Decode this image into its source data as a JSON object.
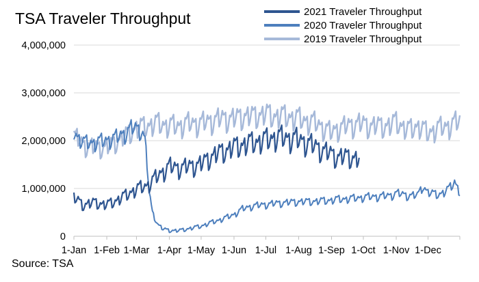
{
  "title": "TSA Traveler Throughput",
  "source": "Source: TSA",
  "chart_data": {
    "type": "line",
    "title": "TSA Traveler Throughput",
    "xlabel": "",
    "ylabel": "",
    "ylim": [
      0,
      4000000
    ],
    "yticks": [
      0,
      1000000,
      2000000,
      3000000,
      4000000
    ],
    "ytick_labels": [
      "0",
      "1,000,000",
      "2,000,000",
      "3,000,000",
      "4,000,000"
    ],
    "xlim": [
      1,
      365
    ],
    "xticks": [
      1,
      32,
      60,
      91,
      121,
      152,
      182,
      213,
      244,
      274,
      305,
      335
    ],
    "xtick_labels": [
      "1-Jan",
      "1-Feb",
      "1-Mar",
      "1-Apr",
      "1-May",
      "1-Jun",
      "1-Jul",
      "1-Aug",
      "1-Sep",
      "1-Oct",
      "1-Nov",
      "1-Dec"
    ],
    "grid": true,
    "legend_position": "top-right",
    "series": [
      {
        "name": "2021 Traveler Throughput",
        "color": "#2e5590",
        "x": [
          1,
          10,
          20,
          32,
          40,
          50,
          60,
          70,
          80,
          91,
          100,
          110,
          121,
          130,
          140,
          152,
          160,
          170,
          182,
          190,
          200,
          213,
          220,
          230,
          244,
          250,
          260,
          270
        ],
        "values": [
          800000,
          650000,
          700000,
          650000,
          730000,
          850000,
          980000,
          1050000,
          1250000,
          1450000,
          1420000,
          1450000,
          1500000,
          1650000,
          1750000,
          1850000,
          1900000,
          1950000,
          2000000,
          2050000,
          2050000,
          2000000,
          1950000,
          1850000,
          1700000,
          1650000,
          1650000,
          1600000
        ],
        "amplitude": 300000,
        "line_width": 2.2
      },
      {
        "name": "2020 Traveler Throughput",
        "color": "#4d7fbd",
        "x": [
          1,
          10,
          20,
          32,
          40,
          50,
          55,
          60,
          65,
          68,
          70,
          72,
          75,
          80,
          85,
          91,
          100,
          110,
          121,
          130,
          140,
          152,
          160,
          170,
          182,
          190,
          200,
          213,
          220,
          230,
          244,
          250,
          260,
          270,
          280,
          290,
          300,
          305,
          315,
          325,
          330,
          335,
          345,
          350,
          355,
          360,
          365
        ],
        "values": [
          2150000,
          1950000,
          1950000,
          2000000,
          2050000,
          2150000,
          2250000,
          2250000,
          2200000,
          2000000,
          1500000,
          900000,
          500000,
          250000,
          150000,
          120000,
          115000,
          160000,
          210000,
          280000,
          350000,
          450000,
          570000,
          630000,
          660000,
          680000,
          700000,
          720000,
          720000,
          730000,
          750000,
          770000,
          780000,
          800000,
          820000,
          830000,
          850000,
          900000,
          850000,
          850000,
          1050000,
          900000,
          880000,
          900000,
          1000000,
          1150000,
          900000
        ],
        "amplitude": 200000,
        "line_width": 2.0
      },
      {
        "name": "2019 Traveler Throughput",
        "color": "#a6b9d9",
        "x": [
          1,
          10,
          20,
          32,
          40,
          50,
          60,
          70,
          80,
          91,
          100,
          110,
          121,
          130,
          140,
          152,
          160,
          170,
          182,
          190,
          200,
          213,
          220,
          230,
          244,
          250,
          260,
          270,
          280,
          290,
          300,
          305,
          315,
          325,
          335,
          345,
          355,
          365
        ],
        "values": [
          2100000,
          1900000,
          1850000,
          1850000,
          1950000,
          2100000,
          2250000,
          2300000,
          2350000,
          2300000,
          2300000,
          2350000,
          2350000,
          2400000,
          2450000,
          2450000,
          2500000,
          2500000,
          2550000,
          2500000,
          2500000,
          2450000,
          2400000,
          2350000,
          2150000,
          2250000,
          2300000,
          2350000,
          2300000,
          2300000,
          2300000,
          2400000,
          2200000,
          2300000,
          2150000,
          2250000,
          2300000,
          2400000
        ],
        "amplitude": 250000,
        "line_width": 2.4
      }
    ]
  }
}
